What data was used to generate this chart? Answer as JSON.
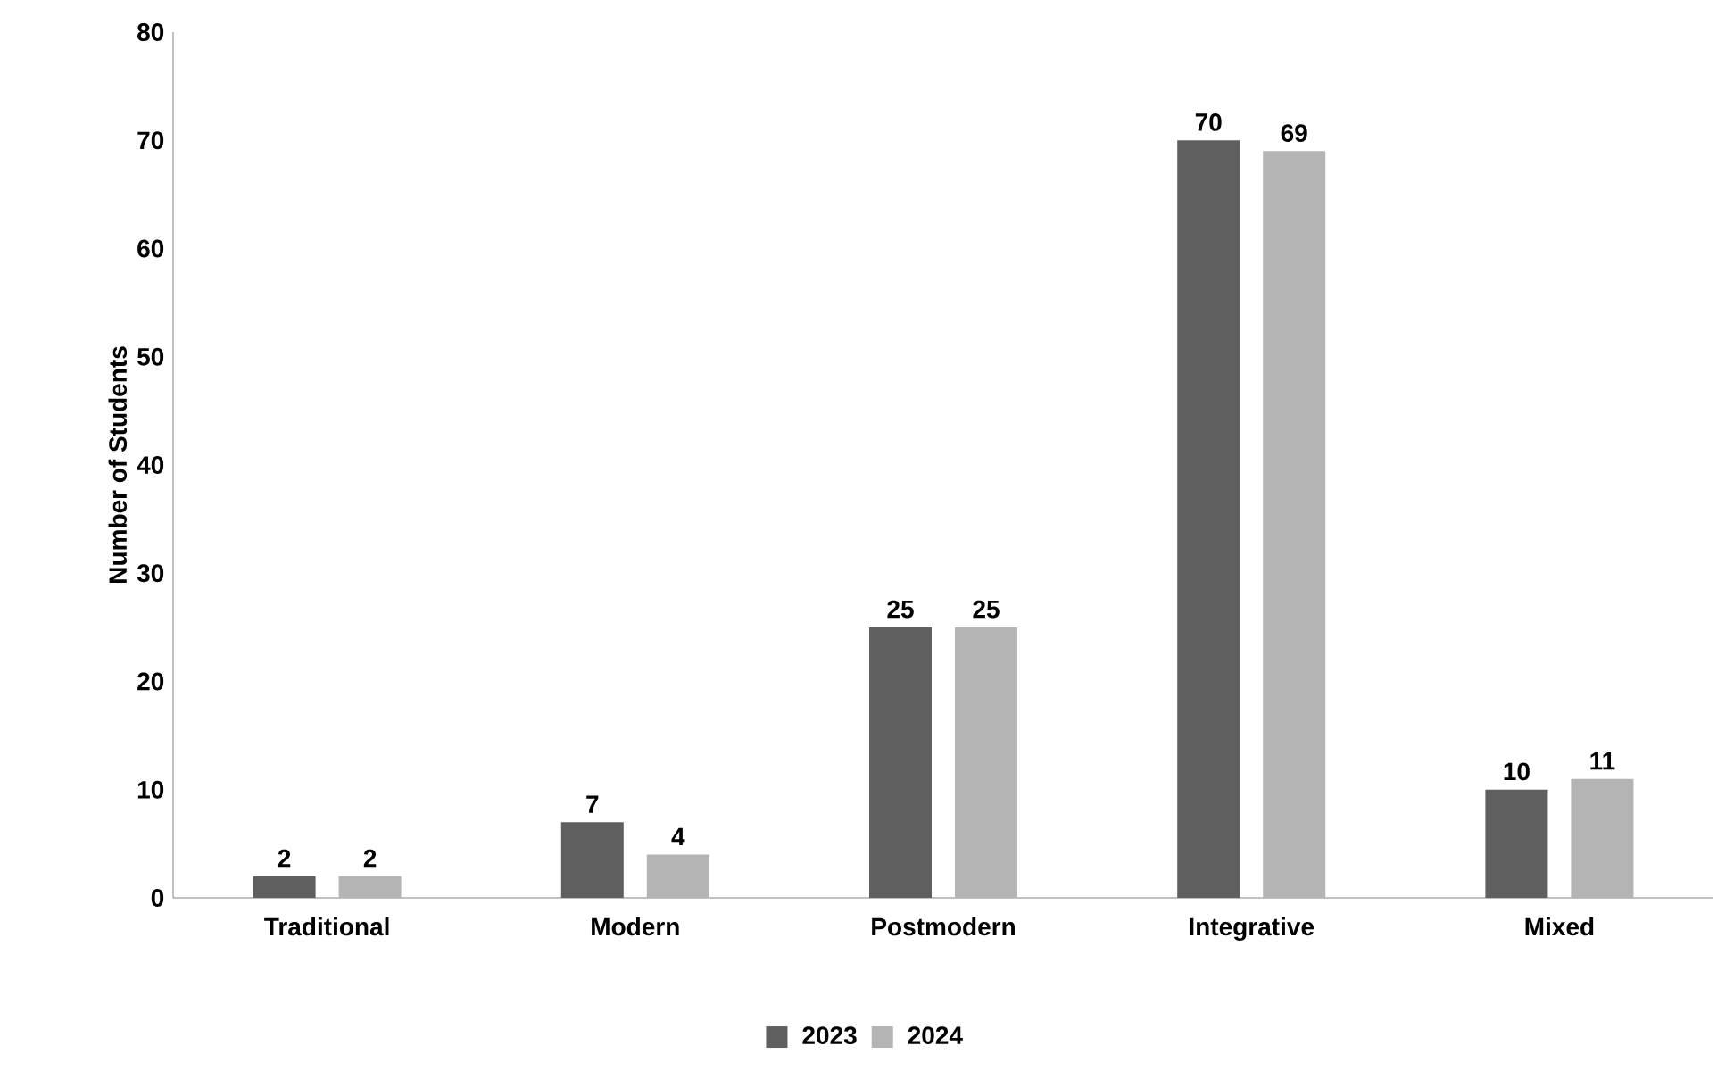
{
  "chart_data": {
    "type": "bar",
    "ylabel": "Number of Students",
    "categories": [
      "Traditional",
      "Modern",
      "Postmodern",
      "Integrative",
      "Mixed"
    ],
    "series": [
      {
        "name": "2023",
        "color": "#5f5f5f",
        "values": [
          2,
          7,
          25,
          70,
          10
        ]
      },
      {
        "name": "2024",
        "color": "#b4b4b4",
        "values": [
          2,
          4,
          25,
          69,
          11
        ]
      }
    ],
    "ylim": [
      0,
      80
    ],
    "yticks": [
      0,
      10,
      20,
      30,
      40,
      50,
      60,
      70,
      80
    ],
    "grid": false,
    "legend": "bottom",
    "data_labels": true
  }
}
